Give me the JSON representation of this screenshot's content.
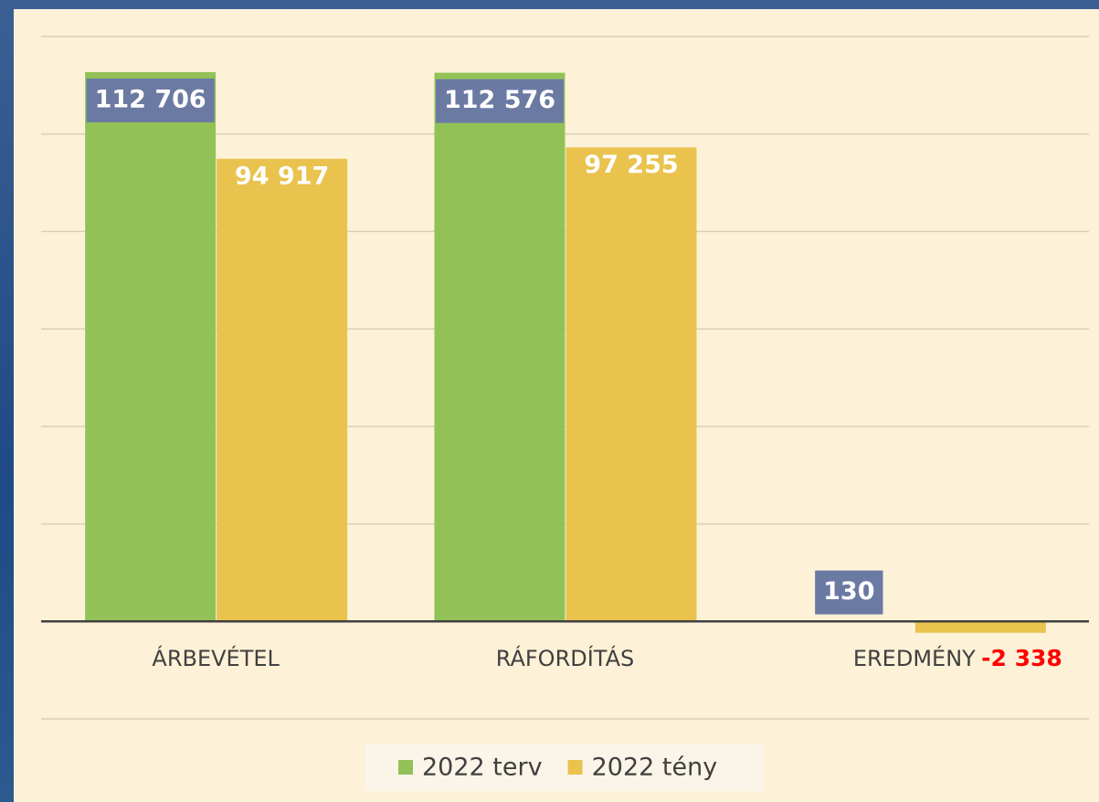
{
  "chart_data": {
    "type": "bar",
    "categories": [
      "ÁRBEVÉTEL",
      "RÁFORDÍTÁS",
      "EREDMÉNY"
    ],
    "series": [
      {
        "name": "2022 terv",
        "color": "#92c257",
        "values": [
          112706,
          112576,
          130
        ],
        "value_labels": [
          "112 706",
          "112 576",
          "130"
        ]
      },
      {
        "name": "2022 tény",
        "color": "#e9c34d",
        "values": [
          94917,
          97255,
          -2338
        ],
        "value_labels": [
          "94 917",
          "97 255",
          "-2 338"
        ]
      }
    ],
    "ylim": [
      -20000,
      120000
    ],
    "yticks": [
      -20000,
      0,
      20000,
      40000,
      60000,
      80000,
      100000,
      120000
    ],
    "grid": true,
    "legend": "bottom"
  }
}
